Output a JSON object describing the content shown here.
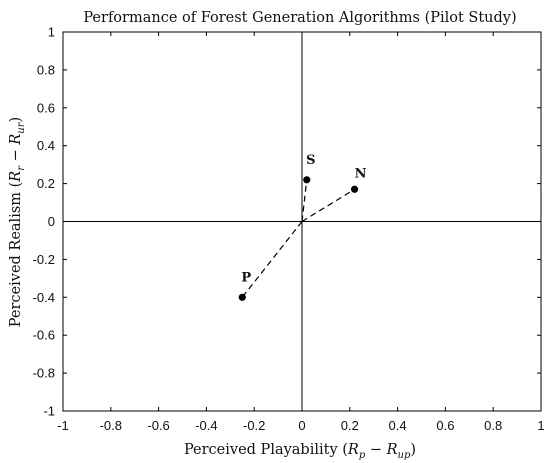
{
  "chart_data": {
    "type": "scatter",
    "title": "Performance of Forest Generation Algorithms (Pilot Study)",
    "xlabel": "Perceived Playability (R_p − R_up)",
    "ylabel": "Perceived Realism (R_r − R_ur)",
    "xlim": [
      -1,
      1
    ],
    "ylim": [
      -1,
      1
    ],
    "xticks": [
      "-1",
      "-0.8",
      "-0.6",
      "-0.4",
      "-0.2",
      "0",
      "0.2",
      "0.4",
      "0.6",
      "0.8",
      "1"
    ],
    "yticks": [
      "-1",
      "-0.8",
      "-0.6",
      "-0.4",
      "-0.2",
      "0",
      "0.2",
      "0.4",
      "0.6",
      "0.8",
      "1"
    ],
    "points": [
      {
        "label": "S",
        "x": 0.02,
        "y": 0.22
      },
      {
        "label": "N",
        "x": 0.22,
        "y": 0.17
      },
      {
        "label": "P",
        "x": -0.25,
        "y": -0.4
      }
    ],
    "connectors": "dashed lines from origin to each point",
    "grid": false,
    "legend": "none"
  }
}
